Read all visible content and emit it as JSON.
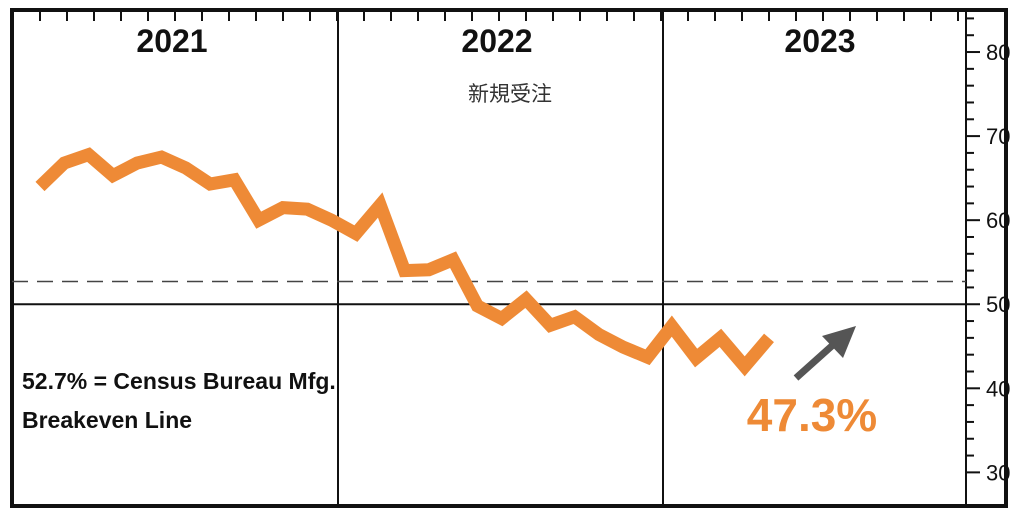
{
  "chart_data": {
    "type": "line",
    "title": "新規受注",
    "years": [
      "2021",
      "2022",
      "2023"
    ],
    "x": [
      "2021-01",
      "2021-02",
      "2021-03",
      "2021-04",
      "2021-05",
      "2021-06",
      "2021-07",
      "2021-08",
      "2021-09",
      "2021-10",
      "2021-11",
      "2021-12",
      "2022-01",
      "2022-02",
      "2022-03",
      "2022-04",
      "2022-05",
      "2022-06",
      "2022-07",
      "2022-08",
      "2022-09",
      "2022-10",
      "2022-11",
      "2022-12",
      "2023-01",
      "2023-02",
      "2023-03",
      "2023-04",
      "2023-05",
      "2023-06",
      "2023-07"
    ],
    "series": [
      {
        "values": [
          64.0,
          66.8,
          67.8,
          65.3,
          66.8,
          67.5,
          66.2,
          64.3,
          64.8,
          60.0,
          61.5,
          61.3,
          60.0,
          58.4,
          61.8,
          54.0,
          54.1,
          55.3,
          49.8,
          48.3,
          50.6,
          47.5,
          48.5,
          46.4,
          44.9,
          43.7,
          47.4,
          43.6,
          46.0,
          42.6,
          46.0
        ]
      }
    ],
    "ylim": [
      26,
      85
    ],
    "yticks": [
      30,
      40,
      50,
      60,
      70,
      80
    ],
    "reference_lines": [
      {
        "value": 52.7,
        "style": "dashed",
        "label": "52.7% = Census Bureau Mfg. Breakeven Line"
      },
      {
        "value": 50,
        "style": "solid"
      }
    ],
    "annotation": {
      "value": "47.3%",
      "color": "#ee8a36"
    },
    "annotation_label_lines": [
      "52.7% = Census Bureau Mfg.",
      "Breakeven Line"
    ],
    "grid": false,
    "colors": {
      "line": "#ee8a36",
      "arrow": "#555555",
      "frame": "#111111"
    }
  }
}
